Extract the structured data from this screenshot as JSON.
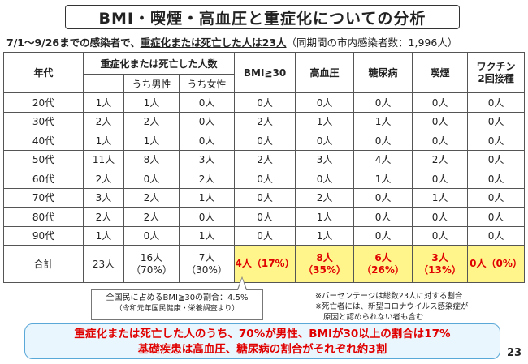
{
  "title": "BMI・喫煙・高血圧と重症化についての分析",
  "subtitle": {
    "prefix": "7/1～9/26までの感染者で、",
    "underlined": "重症化または死亡した人は23人",
    "suffix": "（同期間の市内感染者数：1,996人）"
  },
  "table": {
    "header": {
      "age": "年代",
      "severe_group": "重症化または死亡した人数",
      "male": "うち男性",
      "female": "うち女性",
      "bmi": "BMI≧30",
      "hypertension": "高血圧",
      "diabetes": "糖尿病",
      "smoking": "喫煙",
      "vaccine_line1": "ワクチン",
      "vaccine_line2": "2回接種"
    },
    "rows": [
      {
        "age": "20代",
        "total": "1人",
        "male": "1人",
        "female": "0人",
        "bmi": "0人",
        "hypertension": "0人",
        "diabetes": "0人",
        "smoking": "0人",
        "vaccine": "0人"
      },
      {
        "age": "30代",
        "total": "2人",
        "male": "2人",
        "female": "0人",
        "bmi": "2人",
        "hypertension": "1人",
        "diabetes": "1人",
        "smoking": "0人",
        "vaccine": "0人"
      },
      {
        "age": "40代",
        "total": "1人",
        "male": "1人",
        "female": "0人",
        "bmi": "0人",
        "hypertension": "0人",
        "diabetes": "0人",
        "smoking": "0人",
        "vaccine": "0人"
      },
      {
        "age": "50代",
        "total": "11人",
        "male": "8人",
        "female": "3人",
        "bmi": "2人",
        "hypertension": "3人",
        "diabetes": "4人",
        "smoking": "2人",
        "vaccine": "0人"
      },
      {
        "age": "60代",
        "total": "2人",
        "male": "0人",
        "female": "2人",
        "bmi": "0人",
        "hypertension": "0人",
        "diabetes": "1人",
        "smoking": "0人",
        "vaccine": "0人"
      },
      {
        "age": "70代",
        "total": "3人",
        "male": "2人",
        "female": "1人",
        "bmi": "0人",
        "hypertension": "2人",
        "diabetes": "0人",
        "smoking": "1人",
        "vaccine": "0人"
      },
      {
        "age": "80代",
        "total": "2人",
        "male": "2人",
        "female": "0人",
        "bmi": "0人",
        "hypertension": "1人",
        "diabetes": "0人",
        "smoking": "0人",
        "vaccine": "0人"
      },
      {
        "age": "90代",
        "total": "1人",
        "male": "0人",
        "female": "1人",
        "bmi": "0人",
        "hypertension": "1人",
        "diabetes": "0人",
        "smoking": "0人",
        "vaccine": "0人"
      }
    ],
    "total": {
      "label": "合計",
      "total": "23人",
      "male": "16人",
      "male_pct": "（70%）",
      "female": "7人",
      "female_pct": "（30%）",
      "bmi": "4人",
      "bmi_pct": "（17%）",
      "hypertension": "8人",
      "hypertension_pct": "（35%）",
      "diabetes": "6人",
      "diabetes_pct": "（26%）",
      "smoking": "3人",
      "smoking_pct": "（13%）",
      "vaccine": "0人",
      "vaccine_pct": "（0%）"
    }
  },
  "callout": {
    "line1": "全国民に占めるBMI≧30の割合：4.5%",
    "line2": "（令和元年国民健康・栄養調査より）"
  },
  "notes": {
    "line1": "※パーセンテージは総数23人に対する割合",
    "line2": "※死亡者には、新型コロナウイルス感染症が",
    "line3": "原因と認められない者も含む"
  },
  "summary": {
    "line1": "重症化または死亡した人のうち、70%が男性、BMIが30以上の割合は17%",
    "line2": "基礎疾患は高血圧、糖尿病の割合がそれぞれ約3割"
  },
  "page_number": "23",
  "colors": {
    "highlight_bg": "#fff58a",
    "highlight_text": "#e00000",
    "summary_bg": "#eaf6fd",
    "summary_border": "#5aa8d8"
  }
}
